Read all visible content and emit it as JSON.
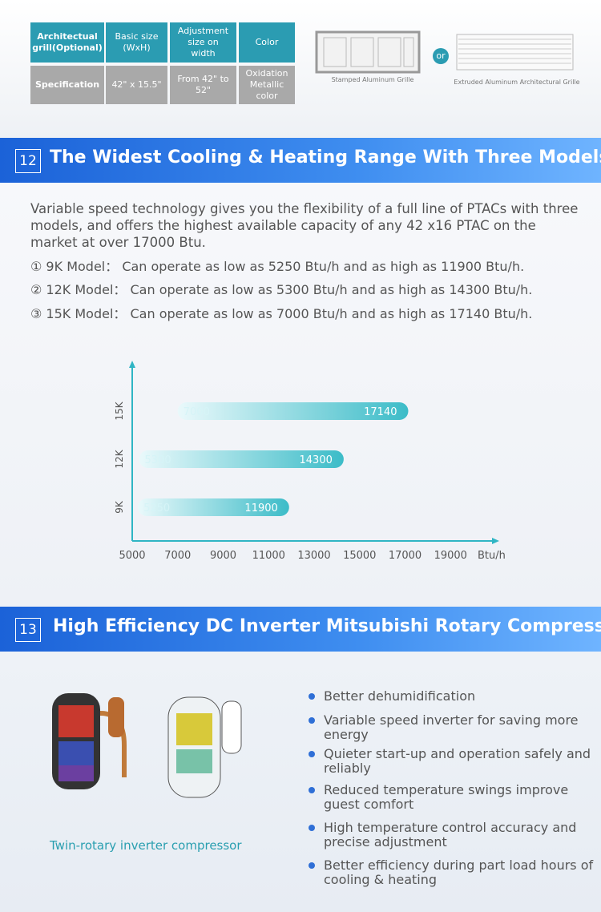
{
  "spec_table": {
    "header": [
      "Architectual grill(Optional)",
      "Basic size (WxH)",
      "Adjustment size on width",
      "Color"
    ],
    "row": [
      "Specification",
      "42\" x 15.5\"",
      "From 42\" to 52\"",
      "Oxidation Metallic color"
    ]
  },
  "grilles": {
    "left": "Stamped Aluminum Grille",
    "or": "or",
    "right": "Extruded Aluminum Architectural Grille"
  },
  "section_12": {
    "number": "12",
    "title": "The Widest Cooling & Heating Range With Three Models"
  },
  "intro": "Variable speed technology gives you the flexibility of a full line of PTACs with three models, and offers the highest available capacity of any 42 x16 PTAC on the market at over 17000 Btu.",
  "models": [
    "① 9K Model： Can operate as low as 5250 Btu/h and as high as 11900 Btu/h.",
    "② 12K Model： Can operate as low as 5300 Btu/h and as high as 14300 Btu/h.",
    "③ 15K Model： Can operate as low as 7000 Btu/h and as high as 17140 Btu/h."
  ],
  "chart_data": {
    "type": "range-bar",
    "categories": [
      "9K",
      "12K",
      "15K"
    ],
    "ranges": [
      [
        5250,
        11900
      ],
      [
        5300,
        14300
      ],
      [
        7000,
        17140
      ]
    ],
    "color": "#3cbcc8",
    "xlabel": "Btu/h",
    "xlim": [
      5000,
      21000
    ],
    "xticks": [
      5000,
      7000,
      9000,
      11000,
      13000,
      15000,
      17000,
      19000
    ]
  },
  "section_13": {
    "number": "13",
    "title": "High Efficiency DC Inverter Mitsubishi Rotary Compressor"
  },
  "compressor_caption": "Twin-rotary inverter compressor",
  "features": [
    "Better dehumidification",
    "Variable speed inverter for saving more energy",
    "Quieter start-up and operation safely and reliably",
    "Reduced temperature swings improve guest comfort",
    "High temperature control accuracy and precise adjustment",
    "Better efficiency during part load hours of cooling & heating"
  ]
}
